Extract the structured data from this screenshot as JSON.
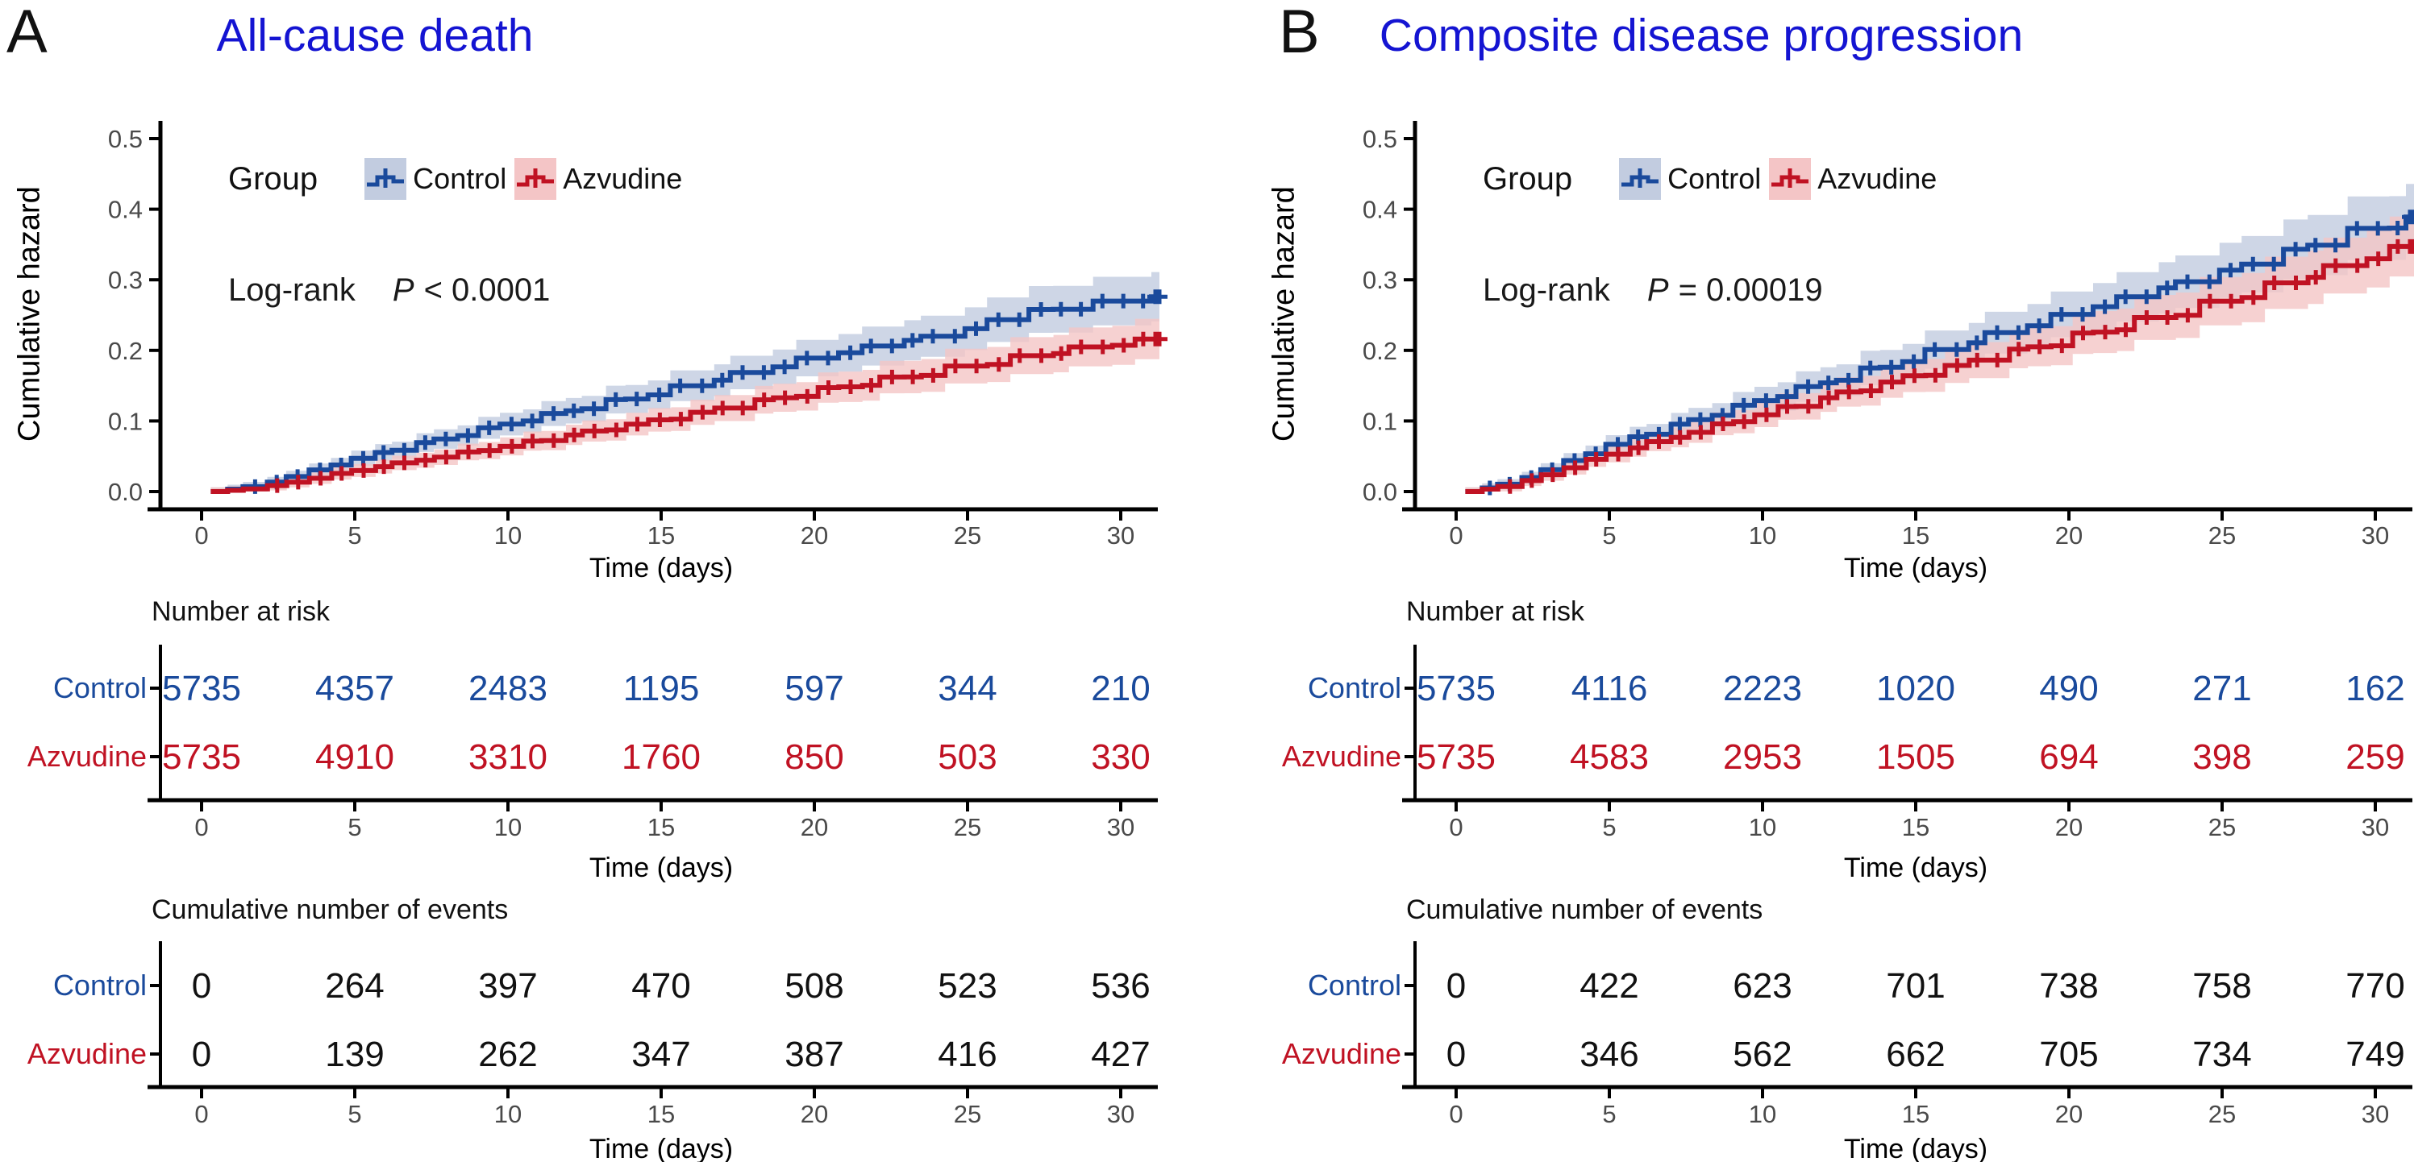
{
  "colors": {
    "control": "#1A4A9C",
    "azvudine": "#C01223",
    "control_band": "#C2CCE0",
    "azvudine_band": "#F4C5C6",
    "title_blue": "#1414D2",
    "tick_gray": "#4A4A4A",
    "axis_black": "#000000",
    "events_number": "#111111"
  },
  "chart_data": [
    {
      "type": "step-line",
      "panel_label": "A",
      "title": "All-cause death",
      "ylabel": "Cumulative hazard",
      "xlabel": "Time (days)",
      "xlim": [
        0,
        31.5
      ],
      "ylim": [
        0,
        0.5
      ],
      "xticks": [
        "0",
        "5",
        "10",
        "15",
        "20",
        "25",
        "30"
      ],
      "yticks": [
        "0.0",
        "0.1",
        "0.2",
        "0.3",
        "0.4",
        "0.5"
      ],
      "grid": false,
      "legend": {
        "title": "Group",
        "entries": [
          "Control",
          "Azvudine"
        ],
        "position": "top-left-inside"
      },
      "logrank": {
        "label": "Log-rank",
        "p_symbol": "P",
        "p_compare": "< 0.0001"
      },
      "series": [
        {
          "name": "Control",
          "color_key": "control",
          "checkpoints": [
            [
              0,
              0
            ],
            [
              1,
              0.004
            ],
            [
              2,
              0.012
            ],
            [
              5,
              0.048
            ],
            [
              10,
              0.098
            ],
            [
              15,
              0.143
            ],
            [
              20,
              0.19
            ],
            [
              25,
              0.228
            ],
            [
              26,
              0.248
            ],
            [
              29,
              0.263
            ],
            [
              31,
              0.276
            ]
          ]
        },
        {
          "name": "Azvudine",
          "color_key": "azvudine",
          "checkpoints": [
            [
              0,
              0
            ],
            [
              1,
              0.002
            ],
            [
              2,
              0.007
            ],
            [
              5,
              0.031
            ],
            [
              10,
              0.066
            ],
            [
              15,
              0.103
            ],
            [
              20,
              0.143
            ],
            [
              25,
              0.178
            ],
            [
              28,
              0.198
            ],
            [
              31,
              0.214
            ]
          ]
        }
      ],
      "risk_table": {
        "title": "Number at risk",
        "time_points": [
          "0",
          "5",
          "10",
          "15",
          "20",
          "25",
          "30"
        ],
        "rows": [
          {
            "name": "Control",
            "color_key": "control",
            "values": [
              "5735",
              "4357",
              "2483",
              "1195",
              "597",
              "344",
              "210"
            ]
          },
          {
            "name": "Azvudine",
            "color_key": "azvudine",
            "values": [
              "5735",
              "4910",
              "3310",
              "1760",
              "850",
              "503",
              "330"
            ]
          }
        ]
      },
      "events_table": {
        "title": "Cumulative number of events",
        "time_points": [
          "0",
          "5",
          "10",
          "15",
          "20",
          "25",
          "30"
        ],
        "rows": [
          {
            "name": "Control",
            "color_key": "control",
            "values": [
              "0",
              "264",
              "397",
              "470",
              "508",
              "523",
              "536"
            ]
          },
          {
            "name": "Azvudine",
            "color_key": "azvudine",
            "values": [
              "0",
              "139",
              "262",
              "347",
              "387",
              "416",
              "427"
            ]
          }
        ]
      }
    },
    {
      "type": "step-line",
      "panel_label": "B",
      "title": "Composite disease progression",
      "ylabel": "Cumulative hazard",
      "xlabel": "Time (days)",
      "xlim": [
        0,
        31.5
      ],
      "ylim": [
        0,
        0.5
      ],
      "xticks": [
        "0",
        "5",
        "10",
        "15",
        "20",
        "25",
        "30"
      ],
      "yticks": [
        "0.0",
        "0.1",
        "0.2",
        "0.3",
        "0.4",
        "0.5"
      ],
      "grid": false,
      "legend": {
        "title": "Group",
        "entries": [
          "Control",
          "Azvudine"
        ],
        "position": "top-left-inside"
      },
      "logrank": {
        "label": "Log-rank",
        "p_symbol": "P",
        "p_compare": "= 0.00019"
      },
      "series": [
        {
          "name": "Control",
          "color_key": "control",
          "checkpoints": [
            [
              0,
              0
            ],
            [
              1,
              0.006
            ],
            [
              2,
              0.018
            ],
            [
              5,
              0.068
            ],
            [
              10,
              0.132
            ],
            [
              15,
              0.192
            ],
            [
              20,
              0.252
            ],
            [
              25,
              0.31
            ],
            [
              28,
              0.35
            ],
            [
              31,
              0.389
            ]
          ]
        },
        {
          "name": "Azvudine",
          "color_key": "azvudine",
          "checkpoints": [
            [
              0,
              0
            ],
            [
              1,
              0.004
            ],
            [
              2,
              0.013
            ],
            [
              5,
              0.055
            ],
            [
              10,
              0.112
            ],
            [
              15,
              0.166
            ],
            [
              20,
              0.218
            ],
            [
              25,
              0.27
            ],
            [
              28,
              0.308
            ],
            [
              31,
              0.346
            ]
          ]
        }
      ],
      "risk_table": {
        "title": "Number at risk",
        "time_points": [
          "0",
          "5",
          "10",
          "15",
          "20",
          "25",
          "30"
        ],
        "rows": [
          {
            "name": "Control",
            "color_key": "control",
            "values": [
              "5735",
              "4116",
              "2223",
              "1020",
              "490",
              "271",
              "162"
            ]
          },
          {
            "name": "Azvudine",
            "color_key": "azvudine",
            "values": [
              "5735",
              "4583",
              "2953",
              "1505",
              "694",
              "398",
              "259"
            ]
          }
        ]
      },
      "events_table": {
        "title": "Cumulative number of events",
        "time_points": [
          "0",
          "5",
          "10",
          "15",
          "20",
          "25",
          "30"
        ],
        "rows": [
          {
            "name": "Control",
            "color_key": "control",
            "values": [
              "0",
              "422",
              "623",
              "701",
              "738",
              "758",
              "770"
            ]
          },
          {
            "name": "Azvudine",
            "color_key": "azvudine",
            "values": [
              "0",
              "346",
              "562",
              "662",
              "705",
              "734",
              "749"
            ]
          }
        ]
      }
    }
  ]
}
